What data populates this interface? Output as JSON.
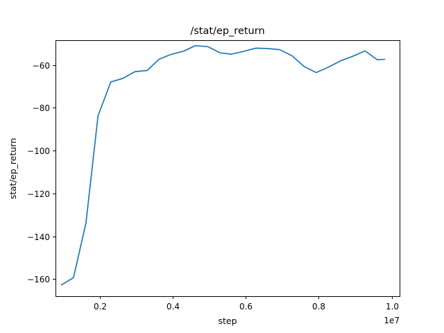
{
  "chart_data": {
    "type": "line",
    "title": "/stat/ep_return",
    "xlabel": "step",
    "ylabel": "stat/ep_return",
    "x_offset_label": "1e7",
    "xlim": [
      0.0785,
      1.0215
    ],
    "ylim": [
      -168,
      -48.5
    ],
    "xticks": [
      0.2,
      0.4,
      0.6,
      0.8,
      1.0
    ],
    "xtick_labels": [
      "0.2",
      "0.4",
      "0.6",
      "0.8",
      "1.0"
    ],
    "yticks": [
      -160,
      -140,
      -120,
      -100,
      -80,
      -60
    ],
    "ytick_labels": [
      "−160",
      "−140",
      "−120",
      "−100",
      "−80",
      "−60"
    ],
    "grid": false,
    "legend": "none",
    "series": [
      {
        "color": "#1f77b4",
        "x": [
          0.095,
          0.128,
          0.162,
          0.195,
          0.23,
          0.263,
          0.296,
          0.33,
          0.362,
          0.395,
          0.43,
          0.462,
          0.496,
          0.53,
          0.56,
          0.594,
          0.627,
          0.66,
          0.693,
          0.727,
          0.76,
          0.793,
          0.827,
          0.86,
          0.893,
          0.927,
          0.96,
          0.98
        ],
        "y": [
          -162.7,
          -159.3,
          -133.8,
          -83.8,
          -68.0,
          -66.3,
          -63.2,
          -62.6,
          -57.4,
          -55.1,
          -53.6,
          -51.0,
          -51.5,
          -54.4,
          -55.0,
          -53.7,
          -52.2,
          -52.4,
          -52.9,
          -55.8,
          -60.8,
          -63.6,
          -61.0,
          -58.1,
          -56.0,
          -53.5,
          -57.6,
          -57.4
        ]
      }
    ]
  }
}
